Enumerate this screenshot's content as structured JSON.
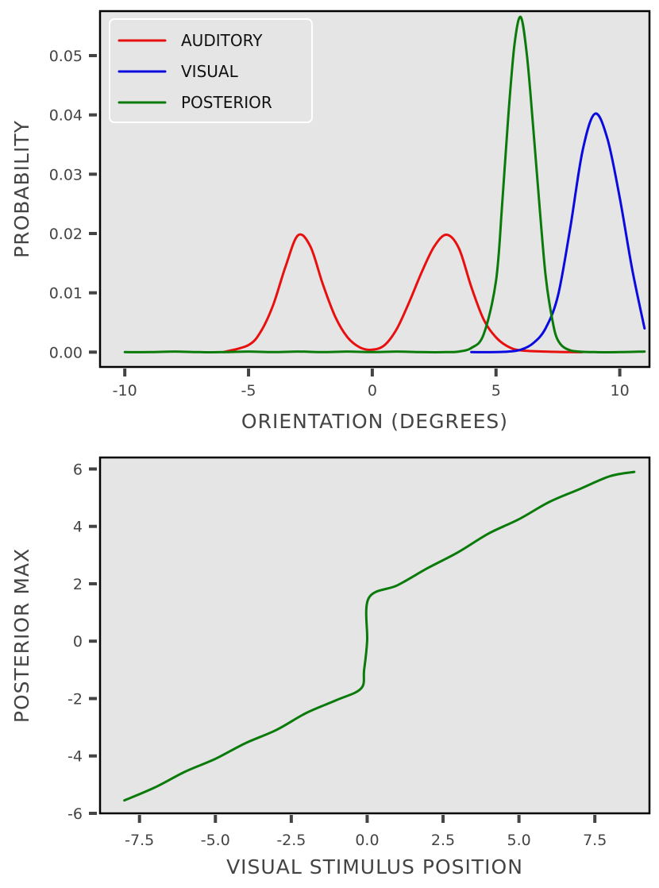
{
  "chart_data": [
    {
      "type": "line",
      "xlabel": "ORIENTATION (DEGREES)",
      "ylabel": "PROBABILITY",
      "xlim": [
        -11,
        11.2
      ],
      "ylim": [
        -0.0025,
        0.0575
      ],
      "xticks": [
        -10,
        -5,
        0,
        5,
        10
      ],
      "xtick_labels": [
        "-10",
        "-5",
        "0",
        "5",
        "10"
      ],
      "yticks": [
        0.0,
        0.01,
        0.02,
        0.03,
        0.04,
        0.05
      ],
      "ytick_labels": [
        "0.00",
        "0.01",
        "0.02",
        "0.03",
        "0.04",
        "0.05"
      ],
      "legend_position": "top-left",
      "series": [
        {
          "name": "AUDITORY",
          "color": "#e8100f",
          "x": [
            -6,
            -5,
            -4.5,
            -4,
            -3.5,
            -3,
            -2.5,
            -2,
            -1.5,
            -1,
            -0.5,
            0,
            0.5,
            1,
            1.5,
            2,
            2.5,
            3,
            3.5,
            4,
            4.5,
            5,
            5.5,
            6,
            7,
            8,
            8.5
          ],
          "y": [
            0.0,
            0.0012,
            0.0035,
            0.008,
            0.0145,
            0.0197,
            0.0178,
            0.0115,
            0.006,
            0.0025,
            0.0008,
            0.0004,
            0.0012,
            0.004,
            0.0085,
            0.0135,
            0.0178,
            0.0198,
            0.0175,
            0.011,
            0.0055,
            0.0025,
            0.0009,
            0.0003,
            0.0001,
            0.0,
            0.0
          ]
        },
        {
          "name": "VISUAL",
          "color": "#0a0ae0",
          "x": [
            4,
            5,
            5.5,
            6,
            6.5,
            7,
            7.5,
            8,
            8.5,
            9,
            9.5,
            10,
            10.5,
            11
          ],
          "y": [
            0.0,
            0.0,
            0.0001,
            0.0004,
            0.0015,
            0.004,
            0.0095,
            0.021,
            0.034,
            0.0402,
            0.036,
            0.026,
            0.014,
            0.004
          ]
        },
        {
          "name": "POSTERIOR",
          "color": "#0a7a0a",
          "x": [
            -10,
            -9,
            -8,
            -7,
            -6,
            -5,
            -4,
            -3,
            -2,
            -1,
            0,
            1,
            2,
            3,
            3.5,
            4,
            4.5,
            5,
            5.25,
            5.5,
            5.75,
            6,
            6.25,
            6.5,
            6.75,
            7,
            7.25,
            7.5,
            8,
            9,
            10,
            11
          ],
          "y": [
            0.0,
            0.0,
            0.0001,
            0.0,
            0.0,
            0.0001,
            0.0,
            0.0001,
            0.0,
            0.0001,
            0.0,
            0.0001,
            0.0,
            0.0,
            0.0001,
            0.0007,
            0.003,
            0.012,
            0.025,
            0.04,
            0.052,
            0.0565,
            0.05,
            0.038,
            0.025,
            0.013,
            0.006,
            0.002,
            0.0003,
            0.0,
            0.0,
            0.0001
          ]
        }
      ]
    },
    {
      "type": "line",
      "xlabel": "VISUAL STIMULUS POSITION",
      "ylabel": "POSTERIOR MAX",
      "xlim": [
        -8.8,
        9.3
      ],
      "ylim": [
        -6.0,
        6.4
      ],
      "xticks": [
        -7.5,
        -5.0,
        -2.5,
        0.0,
        2.5,
        5.0,
        7.5
      ],
      "xtick_labels": [
        "-7.5",
        "-5.0",
        "-2.5",
        "0.0",
        "2.5",
        "5.0",
        "7.5"
      ],
      "yticks": [
        -6,
        -4,
        -2,
        0,
        2,
        4,
        6
      ],
      "ytick_labels": [
        "-6",
        "-4",
        "-2",
        "0",
        "2",
        "4",
        "6"
      ],
      "series": [
        {
          "name": "posterior max",
          "color": "#0a7a0a",
          "x": [
            -8,
            -7,
            -6,
            -5,
            -4,
            -3,
            -2,
            -1,
            -0.2,
            -0.1,
            0,
            0.05,
            1,
            2,
            3,
            4,
            5,
            6,
            7,
            8,
            8.8
          ],
          "y": [
            -5.55,
            -5.1,
            -4.55,
            -4.1,
            -3.55,
            -3.1,
            -2.5,
            -2.05,
            -1.65,
            -1.0,
            0.0,
            1.5,
            1.95,
            2.55,
            3.1,
            3.75,
            4.25,
            4.85,
            5.3,
            5.75,
            5.9
          ]
        }
      ]
    }
  ]
}
